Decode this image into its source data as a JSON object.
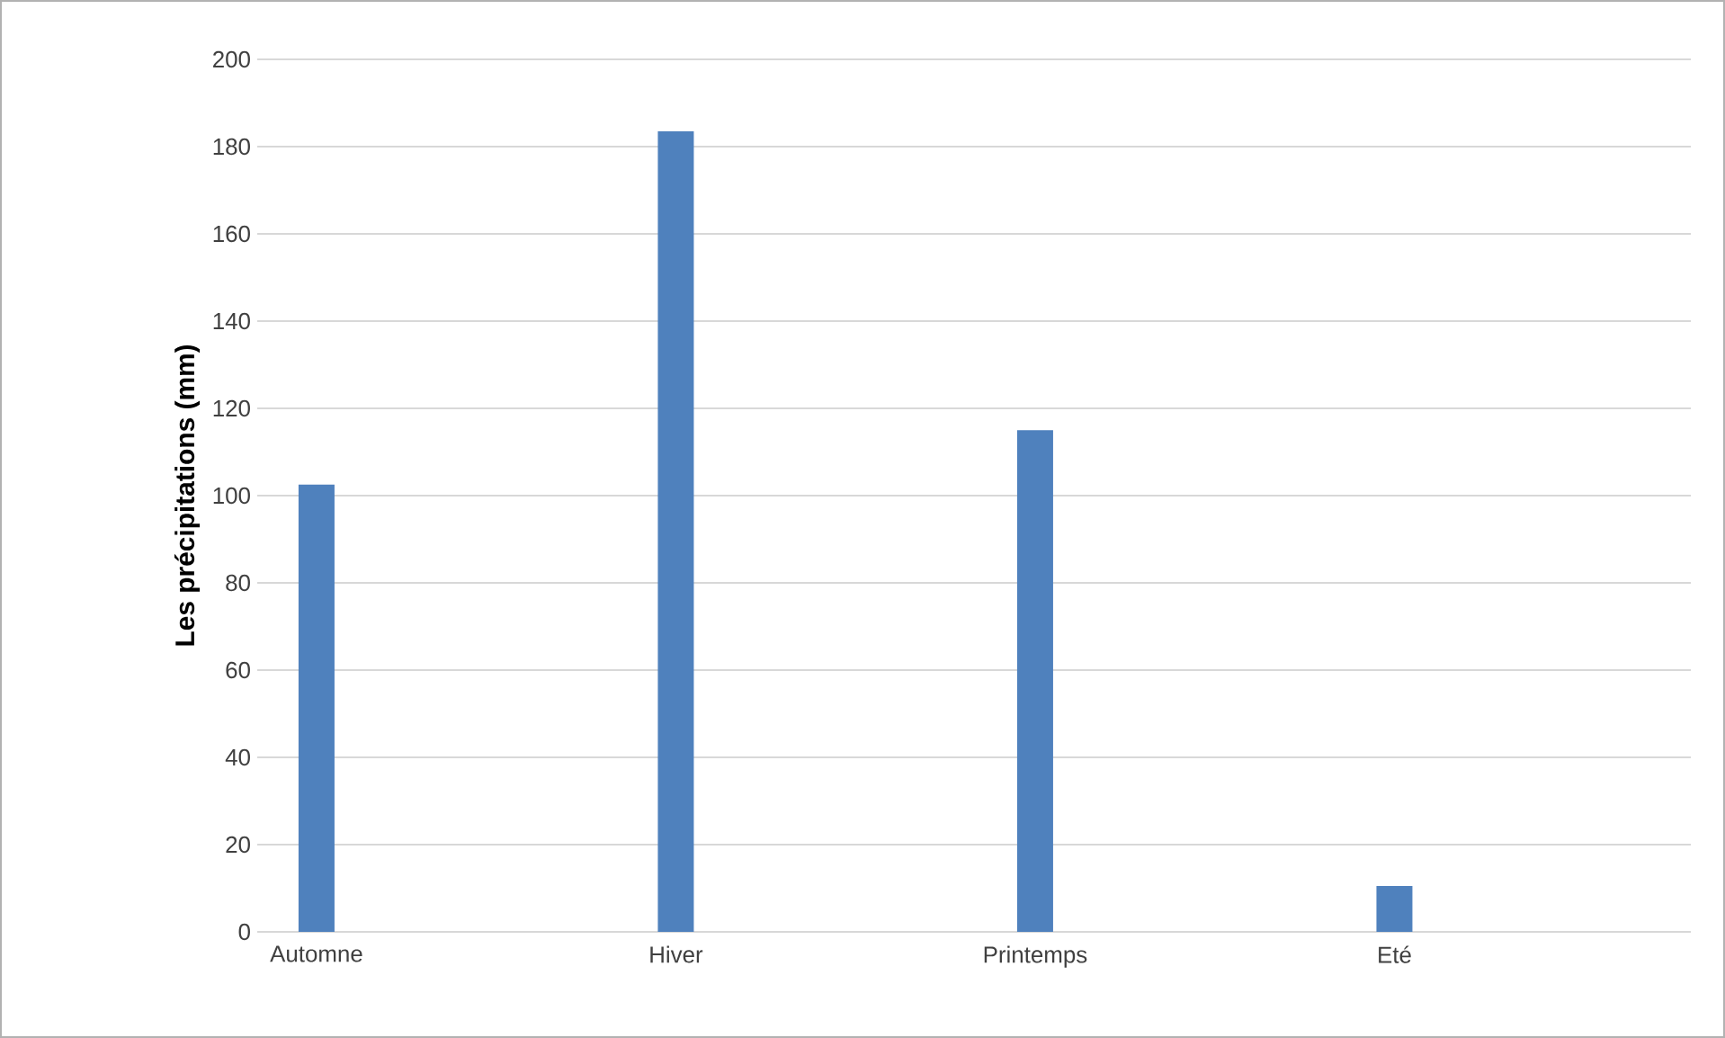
{
  "chart_data": {
    "type": "bar",
    "ylabel": "Les précipitations (mm)",
    "categories": [
      "Automne",
      "Hiver",
      "Printemps",
      "Eté"
    ],
    "values": [
      102.5,
      183.5,
      115,
      10.5
    ],
    "color": "#4f81bd",
    "ylim": [
      0,
      200
    ],
    "yticks": [
      0,
      20,
      40,
      60,
      80,
      100,
      120,
      140,
      160,
      180,
      200
    ],
    "grid": "y"
  }
}
